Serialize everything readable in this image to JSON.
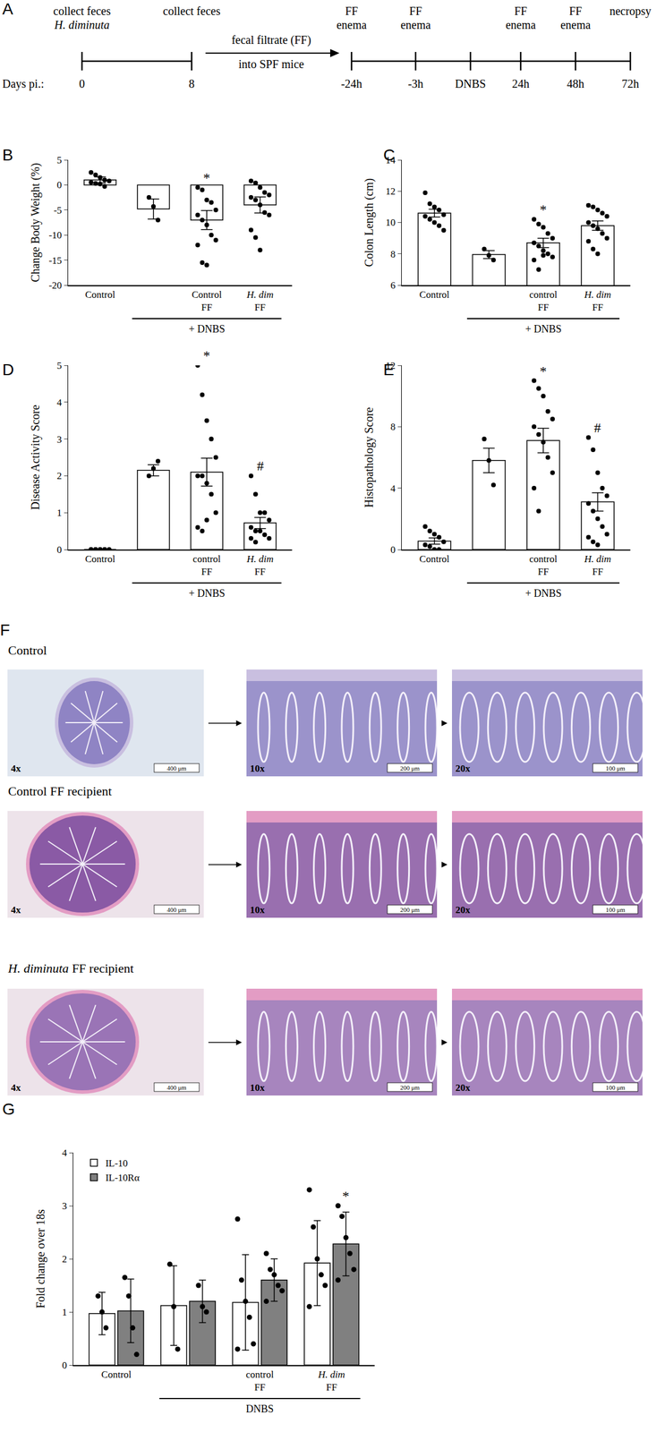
{
  "panel_a": {
    "panel": "A",
    "row_label": "Days pi.:",
    "left_ticks": [
      {
        "label": "0",
        "above": [
          "collect feces",
          "H. diminuta"
        ]
      },
      {
        "label": "8",
        "above": [
          "collect feces"
        ]
      }
    ],
    "arrow_text": [
      "fecal filtrate (FF)",
      "into SPF mice"
    ],
    "right_ticks": [
      {
        "label": "-24h",
        "above": [
          "FF",
          "enema"
        ]
      },
      {
        "label": "-3h",
        "above": [
          "FF",
          "enema"
        ]
      },
      {
        "label": "DNBS",
        "above": []
      },
      {
        "label": "24h",
        "above": [
          "FF",
          "enema"
        ]
      },
      {
        "label": "48h",
        "above": [
          "FF",
          "enema"
        ]
      },
      {
        "label": "72h",
        "above": [
          "necropsy"
        ]
      }
    ]
  },
  "chart_data": [
    {
      "panel": "B",
      "type": "bar",
      "y_title": "Change Body Weight (%)",
      "categories": [
        "Control",
        null,
        "Control FF",
        "H. dim FF"
      ],
      "values": [
        1.0,
        -4.8,
        -7.0,
        -4.0
      ],
      "errors": [
        0.6,
        2.0,
        1.9,
        1.6
      ],
      "points": [
        [
          2.5,
          2.0,
          1.5,
          1.0,
          0.8,
          0.5,
          0.3,
          0.2,
          -0.3
        ],
        [
          -2.5,
          -4.3,
          -7.0
        ],
        [
          -0.5,
          -1.0,
          -3.0,
          -3.5,
          -5.0,
          -6.0,
          -7.0,
          -8.0,
          -10.0,
          -11.0,
          -12.0,
          -15.5,
          -16.0
        ],
        [
          0.8,
          0.4,
          -0.5,
          -1.5,
          -2.0,
          -2.5,
          -3.0,
          -4.0,
          -5.5,
          -6.0,
          -9.0,
          -10.5,
          -13.0
        ]
      ],
      "color": "#ffffff",
      "ylim": [
        -20,
        5
      ],
      "yticks": [
        -20,
        -15,
        -10,
        -5,
        0,
        5
      ],
      "grid": false,
      "bracket": {
        "label": "+ DNBS",
        "from": 1,
        "to": 3
      },
      "significance": [
        {
          "category": 2,
          "text": "*"
        }
      ]
    },
    {
      "panel": "C",
      "type": "bar",
      "y_title": "Colon Length (cm)",
      "categories": [
        "Control",
        null,
        "control FF",
        "H. dim FF"
      ],
      "values": [
        10.6,
        7.95,
        8.7,
        9.8
      ],
      "errors": [
        0.25,
        0.25,
        0.3,
        0.3
      ],
      "points": [
        [
          11.9,
          11.2,
          11.0,
          10.8,
          10.5,
          10.4,
          10.2,
          10.0,
          9.8,
          9.5
        ],
        [
          8.3,
          7.9,
          7.6
        ],
        [
          10.2,
          9.9,
          9.7,
          9.3,
          9.0,
          8.7,
          8.5,
          8.2,
          8.0,
          7.8,
          7.6,
          7.0,
          7.9
        ],
        [
          11.1,
          11.0,
          10.8,
          10.6,
          10.4,
          10.0,
          9.8,
          9.6,
          9.3,
          9.0,
          8.8,
          8.3,
          8.0
        ]
      ],
      "color": "#ffffff",
      "ylim": [
        6,
        14
      ],
      "yticks": [
        6,
        8,
        10,
        12,
        14
      ],
      "grid": false,
      "bracket": {
        "label": "+ DNBS",
        "from": 1,
        "to": 3
      },
      "significance": [
        {
          "category": 2,
          "text": "*"
        }
      ]
    },
    {
      "panel": "D",
      "type": "bar",
      "y_title": "Disease Activity Score",
      "categories": [
        "Control",
        null,
        "control FF",
        "H. dim FF"
      ],
      "values": [
        0,
        2.15,
        2.1,
        0.72
      ],
      "errors": [
        0,
        0.15,
        0.38,
        0.15
      ],
      "points": [
        [
          0,
          0,
          0,
          0,
          0,
          0,
          0,
          0,
          0
        ],
        [
          2.0,
          2.2,
          2.4
        ],
        [
          5.0,
          4.2,
          3.5,
          3.0,
          2.5,
          2.0,
          2.0,
          1.8,
          1.5,
          1.0,
          0.6,
          0.5,
          0.8
        ],
        [
          2.0,
          1.5,
          1.0,
          1.0,
          0.8,
          0.6,
          0.5,
          0.5,
          0.4,
          0.3,
          0.3,
          0.2
        ]
      ],
      "color": "#ffffff",
      "ylim": [
        0,
        5
      ],
      "yticks": [
        0,
        1,
        2,
        3,
        4,
        5
      ],
      "grid": false,
      "bracket": {
        "label": "+ DNBS",
        "from": 1,
        "to": 3
      },
      "significance": [
        {
          "category": 2,
          "text": "*"
        },
        {
          "category": 3,
          "text": "#"
        }
      ]
    },
    {
      "panel": "E",
      "type": "bar",
      "y_title": "Histopathology Score",
      "categories": [
        "Control",
        null,
        "control FF",
        "H. dim FF"
      ],
      "values": [
        0.55,
        5.8,
        7.1,
        3.1
      ],
      "errors": [
        0.2,
        0.8,
        0.8,
        0.6
      ],
      "points": [
        [
          1.5,
          1.2,
          1.0,
          0.8,
          0.5,
          0.3,
          0.2,
          0,
          0
        ],
        [
          7.2,
          5.8,
          4.2
        ],
        [
          11.0,
          10.5,
          10.0,
          9.0,
          8.5,
          8.0,
          7.5,
          7.0,
          6.0,
          5.0,
          4.0,
          2.5
        ],
        [
          7.3,
          6.5,
          5.0,
          4.0,
          3.5,
          3.0,
          2.5,
          2.0,
          1.5,
          1.0,
          0.8,
          0.5,
          0.3
        ]
      ],
      "color": "#ffffff",
      "ylim": [
        0,
        12
      ],
      "yticks": [
        0,
        4,
        8,
        12
      ],
      "grid": false,
      "bracket": {
        "label": "+ DNBS",
        "from": 1,
        "to": 3
      },
      "significance": [
        {
          "category": 2,
          "text": "*"
        },
        {
          "category": 3,
          "text": "#"
        }
      ]
    },
    {
      "panel": "G",
      "type": "bar",
      "y_title": "Fold change over 18s",
      "categories": [
        "Control",
        null,
        "control FF",
        "H. dim FF"
      ],
      "series": [
        {
          "name": "IL-10",
          "color": "#ffffff",
          "values": [
            0.97,
            1.12,
            1.18,
            1.92
          ],
          "errors": [
            0.4,
            0.75,
            0.9,
            0.8
          ],
          "points": [
            [
              1.3,
              1.0,
              0.7
            ],
            [
              1.9,
              1.1,
              0.3
            ],
            [
              2.75,
              1.6,
              1.2,
              0.9,
              0.4,
              0.3
            ],
            [
              3.3,
              2.6,
              2.0,
              1.7,
              1.5,
              1.1
            ]
          ]
        },
        {
          "name": "IL-10Rα",
          "color": "#808080",
          "values": [
            1.02,
            1.2,
            1.6,
            2.28
          ],
          "errors": [
            0.6,
            0.4,
            0.4,
            0.6
          ],
          "points": [
            [
              1.65,
              1.3,
              0.7,
              0.2
            ],
            [
              1.5,
              1.1,
              1.0
            ],
            [
              2.1,
              1.8,
              1.7,
              1.5,
              1.4,
              1.2
            ],
            [
              3.0,
              2.8,
              2.4,
              2.1,
              1.8,
              1.6
            ]
          ]
        }
      ],
      "ylim": [
        0,
        4
      ],
      "yticks": [
        0,
        1,
        2,
        3,
        4
      ],
      "grid": false,
      "legend": "upper left",
      "bracket": {
        "label": "DNBS",
        "from": 1,
        "to": 3
      },
      "significance": [
        {
          "category": 3,
          "series": 1,
          "text": "*"
        }
      ]
    }
  ],
  "panel_f": {
    "panel": "F",
    "magnifications": [
      "4x",
      "10x",
      "20x"
    ],
    "scale_bars": [
      "400 μm",
      "200 μm",
      "100 μm"
    ],
    "rows": [
      {
        "label": "Control"
      },
      {
        "label": "Control FF recipient"
      },
      {
        "label": "H. diminuta FF recipient"
      }
    ]
  }
}
